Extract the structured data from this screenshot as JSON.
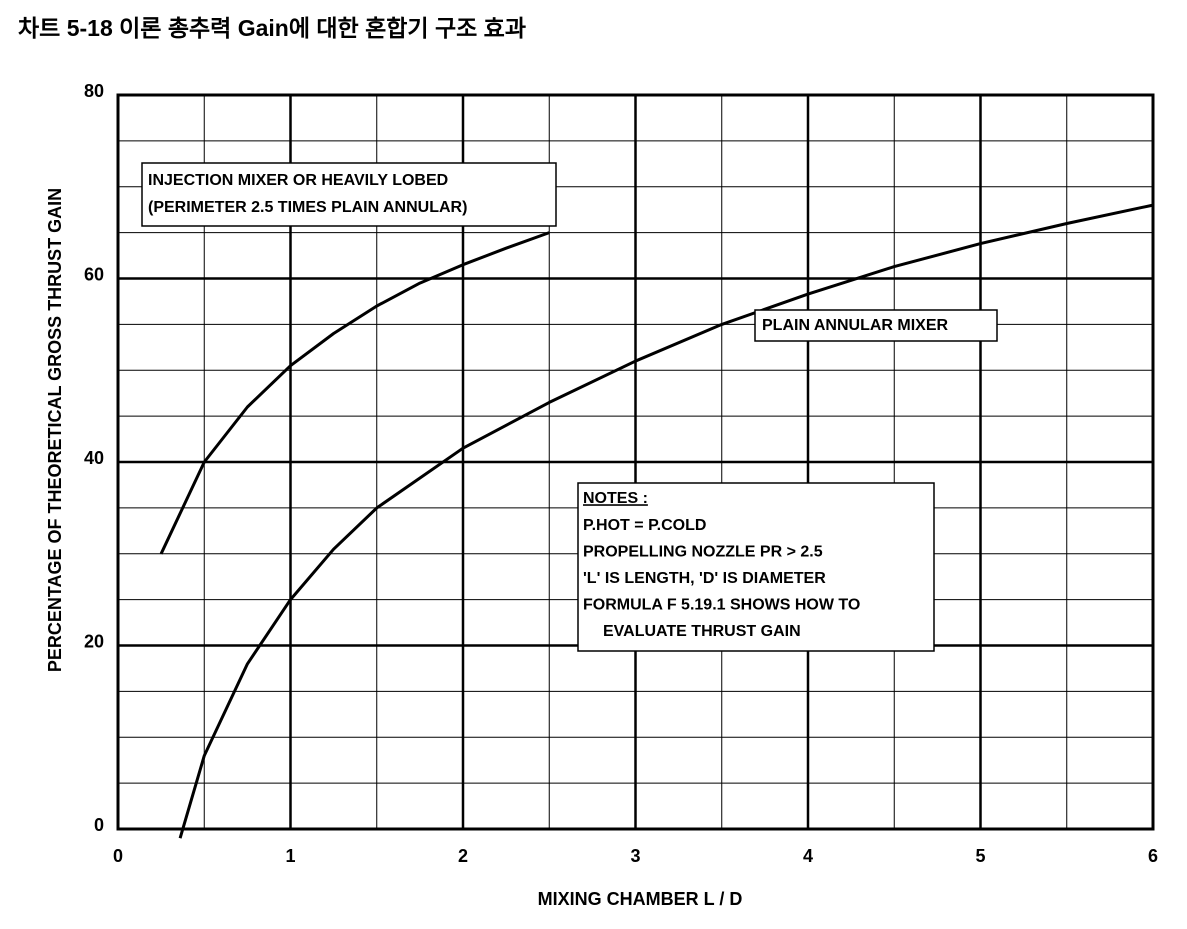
{
  "chart_data": {
    "type": "line",
    "title": "차트 5-18 이론 총추력 Gain에 대한 혼합기 구조 효과",
    "x_label": "MIXING CHAMBER L / D",
    "y_label": "PERCENTAGE OF THEORETICAL GROSS THRUST GAIN",
    "xlim": [
      0,
      6
    ],
    "ylim": [
      0,
      80
    ],
    "xticks": [
      0,
      1,
      2,
      3,
      4,
      5,
      6
    ],
    "yticks": [
      0,
      20,
      40,
      60,
      80
    ],
    "x_minor_ticks": [
      0.5,
      1.5,
      2.5,
      3.5,
      4.5,
      5.5
    ],
    "y_minor_ticks": [
      5,
      10,
      15,
      25,
      30,
      35,
      45,
      50,
      55,
      65,
      70,
      75
    ],
    "grid": true,
    "series": [
      {
        "color": "#000000",
        "x": [
          0.25,
          0.5,
          0.75,
          1,
          1.25,
          1.5,
          1.75,
          2,
          2.25,
          2.5
        ],
        "values": [
          30,
          40,
          46,
          50.5,
          54,
          57,
          59.5,
          61.5,
          63.3,
          65
        ]
      },
      {
        "color": "#000000",
        "x": [
          0.36,
          0.5,
          0.75,
          1,
          1.25,
          1.5,
          2,
          2.5,
          3,
          3.5,
          4,
          4.5,
          5,
          5.5,
          6
        ],
        "values": [
          -1,
          8,
          18,
          25,
          30.5,
          35,
          41.5,
          46.5,
          51,
          55,
          58.3,
          61.3,
          63.8,
          66,
          68
        ]
      }
    ],
    "annotations": [
      {
        "lines": [
          "INJECTION MIXER OR HEAVILY LOBED",
          "(PERIMETER 2.5 TIMES PLAIN ANNULAR)"
        ]
      },
      {
        "lines": [
          "PLAIN ANNULAR MIXER"
        ]
      },
      {
        "lines": [
          "NOTES :",
          "P.HOT = P.COLD",
          "PROPELLING NOZZLE PR > 2.5",
          "'L' IS LENGTH, 'D' IS DIAMETER",
          "FORMULA F 5.19.1 SHOWS HOW TO",
          "EVALUATE THRUST GAIN"
        ]
      }
    ]
  }
}
